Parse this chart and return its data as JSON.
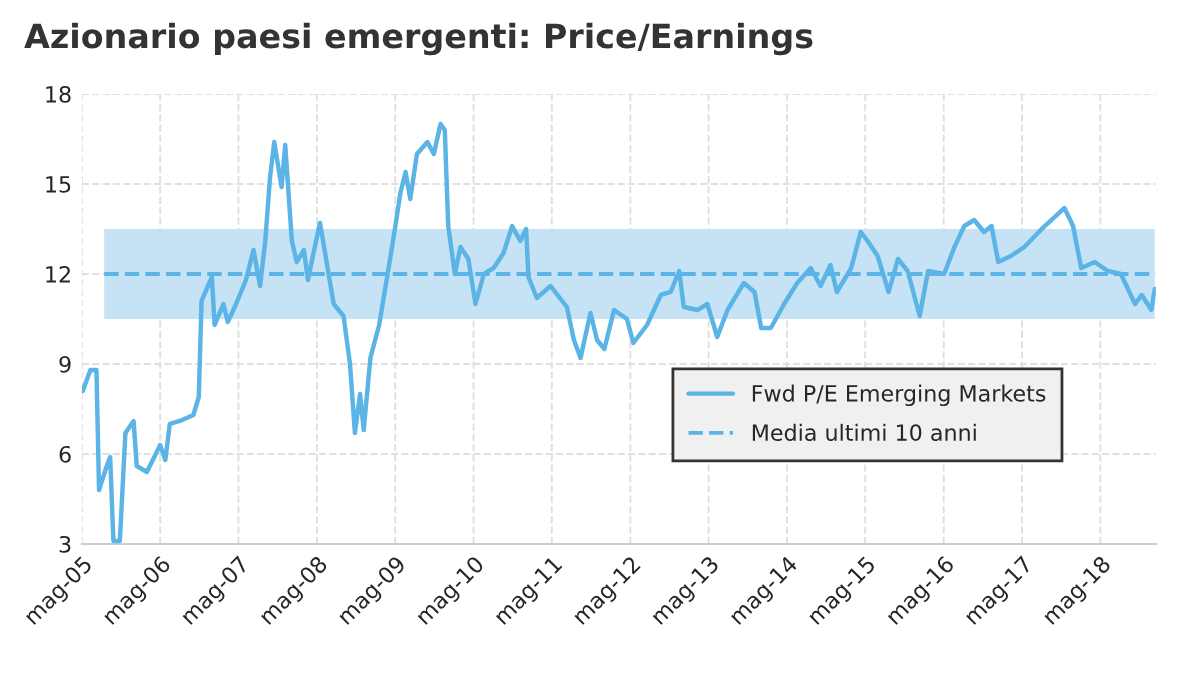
{
  "chart_data": {
    "type": "line",
    "title": "Azionario paesi emergenti: Price/Earnings",
    "x": [
      "2005-05-05",
      "2005-06-10",
      "2005-07-08",
      "2005-07-20",
      "2005-08-25",
      "2005-09-10",
      "2005-09-25",
      "2005-10-25",
      "2005-11-20",
      "2005-12-28",
      "2006-01-12",
      "2006-02-28",
      "2006-05-01",
      "2006-05-25",
      "2006-06-15",
      "2006-08-01",
      "2006-10-03",
      "2006-10-28",
      "2006-11-10",
      "2006-12-28",
      "2007-01-10",
      "2007-02-20",
      "2007-03-12",
      "2007-04-20",
      "2007-06-05",
      "2007-07-10",
      "2007-08-10",
      "2007-09-03",
      "2007-09-25",
      "2007-10-15",
      "2007-11-18",
      "2007-12-05",
      "2008-01-05",
      "2008-01-28",
      "2008-03-01",
      "2008-03-20",
      "2008-04-15",
      "2008-05-15",
      "2008-06-15",
      "2008-07-18",
      "2008-09-02",
      "2008-10-02",
      "2008-10-25",
      "2008-11-18",
      "2008-12-05",
      "2009-01-05",
      "2009-02-15",
      "2009-03-22",
      "2009-04-25",
      "2009-05-25",
      "2009-06-18",
      "2009-07-10",
      "2009-08-10",
      "2009-09-28",
      "2009-10-28",
      "2009-11-28",
      "2009-12-18",
      "2010-01-03",
      "2010-02-03",
      "2010-03-01",
      "2010-04-07",
      "2010-05-10",
      "2010-06-18",
      "2010-08-03",
      "2010-09-18",
      "2010-10-28",
      "2010-12-05",
      "2011-01-01",
      "2011-01-12",
      "2011-02-20",
      "2011-04-25",
      "2011-07-10",
      "2011-08-12",
      "2011-09-12",
      "2011-10-28",
      "2011-11-28",
      "2012-01-01",
      "2012-02-15",
      "2012-04-15",
      "2012-05-15",
      "2012-07-18",
      "2012-09-20",
      "2012-11-05",
      "2012-12-15",
      "2013-01-05",
      "2013-03-10",
      "2013-04-25",
      "2013-06-10",
      "2013-07-28",
      "2013-10-12",
      "2013-12-01",
      "2014-01-01",
      "2014-02-15",
      "2014-04-18",
      "2014-06-18",
      "2014-08-20",
      "2014-10-05",
      "2014-11-20",
      "2014-12-20",
      "2015-02-25",
      "2015-04-10",
      "2015-05-12",
      "2015-06-28",
      "2015-08-18",
      "2015-10-01",
      "2015-11-15",
      "2016-01-10",
      "2016-02-18",
      "2016-05-03",
      "2016-06-20",
      "2016-08-05",
      "2016-09-20",
      "2016-11-05",
      "2016-12-10",
      "2017-01-10",
      "2017-03-10",
      "2017-05-12",
      "2017-08-01",
      "2017-10-01",
      "2017-11-15",
      "2017-12-25",
      "2018-02-01",
      "2018-04-05",
      "2018-06-05",
      "2018-08-05",
      "2018-10-10",
      "2018-11-10",
      "2018-12-25",
      "2019-01-10"
    ],
    "series": [
      {
        "name": "Fwd P/E Emerging Markets",
        "color": "#5bb4e5",
        "values": [
          8.1,
          8.8,
          8.8,
          4.8,
          5.6,
          5.9,
          3.1,
          3.1,
          6.7,
          7.1,
          5.6,
          5.4,
          6.3,
          5.8,
          7.0,
          7.1,
          7.3,
          7.9,
          11.1,
          11.9,
          10.3,
          11.0,
          10.4,
          11.0,
          11.8,
          12.8,
          11.6,
          13.1,
          15.2,
          16.4,
          14.9,
          16.3,
          13.1,
          12.4,
          12.8,
          11.8,
          12.7,
          13.7,
          12.4,
          11.0,
          10.6,
          9.0,
          6.7,
          8.0,
          6.8,
          9.2,
          10.3,
          11.8,
          13.3,
          14.7,
          15.4,
          14.5,
          16.0,
          16.4,
          16.0,
          17.0,
          16.8,
          13.6,
          12.0,
          12.9,
          12.5,
          11.0,
          12.0,
          12.2,
          12.7,
          13.6,
          13.1,
          13.5,
          11.9,
          11.2,
          11.6,
          10.9,
          9.8,
          9.2,
          10.7,
          9.8,
          9.5,
          10.8,
          10.5,
          9.7,
          10.3,
          11.3,
          11.4,
          12.1,
          10.9,
          10.8,
          11.0,
          9.9,
          10.8,
          11.7,
          11.4,
          10.2,
          10.2,
          11.0,
          11.7,
          12.2,
          11.6,
          12.3,
          11.4,
          12.2,
          13.4,
          13.1,
          12.6,
          11.4,
          12.5,
          12.1,
          10.6,
          12.1,
          12.0,
          12.9,
          13.6,
          13.8,
          13.4,
          13.6,
          12.4,
          12.6,
          12.9,
          13.5,
          13.9,
          14.2,
          13.6,
          12.2,
          12.4,
          12.1,
          12.0,
          11.0,
          11.3,
          10.8,
          11.5
        ]
      }
    ],
    "ref_lines": [
      {
        "axis": "y",
        "value": 12,
        "label": "Media ultimi 10 anni",
        "color": "#5bb4e5",
        "line_style": "dashed"
      }
    ],
    "bands": [
      {
        "axis": "y",
        "from": 10.5,
        "to": 13.5,
        "color": "#c6e2f5"
      }
    ],
    "xlim": [
      "2005-05-01",
      "2019-01-15"
    ],
    "xticks": [
      {
        "value": "2005-05-01",
        "label": "mag-05"
      },
      {
        "value": "2006-05-01",
        "label": "mag-06"
      },
      {
        "value": "2007-05-01",
        "label": "mag-07"
      },
      {
        "value": "2008-05-01",
        "label": "mag-08"
      },
      {
        "value": "2009-05-01",
        "label": "mag-09"
      },
      {
        "value": "2010-05-01",
        "label": "mag-10"
      },
      {
        "value": "2011-05-01",
        "label": "mag-11"
      },
      {
        "value": "2012-05-01",
        "label": "mag-12"
      },
      {
        "value": "2013-05-01",
        "label": "mag-13"
      },
      {
        "value": "2014-05-01",
        "label": "mag-14"
      },
      {
        "value": "2015-05-01",
        "label": "mag-15"
      },
      {
        "value": "2016-05-01",
        "label": "mag-16"
      },
      {
        "value": "2017-05-01",
        "label": "mag-17"
      },
      {
        "value": "2018-05-01",
        "label": "mag-18"
      }
    ],
    "ylim": [
      3,
      18
    ],
    "yticks": [
      3,
      6,
      9,
      12,
      15,
      18
    ],
    "grid": true,
    "legend": "right",
    "line_style": "solid"
  }
}
